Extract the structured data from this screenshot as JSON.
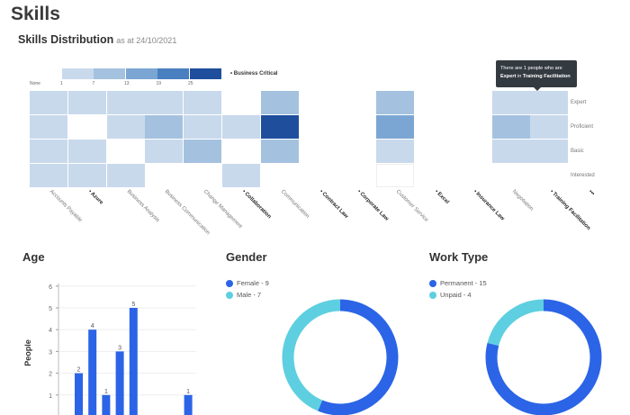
{
  "page": {
    "title": "Skills"
  },
  "skills_distribution": {
    "title": "Skills Distribution",
    "as_at": "as at 24/10/2021"
  },
  "colors": {
    "bar": "#2b64e6",
    "female": "#2b64e6",
    "male": "#5dcfe0",
    "scale": [
      "#ffffff",
      "#c9d9ec",
      "#a4c2df",
      "#7ba6d3",
      "#4a7fc0",
      "#1f4e9c"
    ]
  },
  "tooltip": {
    "line1": "There are 1 people who are",
    "level": "Expert",
    "in": " in ",
    "skill": "Training Facilitation"
  },
  "chart_data": [
    {
      "type": "heatmap",
      "legend": {
        "labels": [
          "None",
          "1",
          "7",
          "13",
          "19",
          "25"
        ],
        "critical_label": "• Business Critical"
      },
      "rows": [
        "Expert",
        "Proficient",
        "Basic",
        "Interested"
      ],
      "columns": [
        {
          "name": "Accounts Payable",
          "critical": false
        },
        {
          "name": "• Azure",
          "critical": true
        },
        {
          "name": "Business Analysis",
          "critical": false
        },
        {
          "name": "Business Communication",
          "critical": false
        },
        {
          "name": "Change Management",
          "critical": false
        },
        {
          "name": "• Collaboration",
          "critical": true
        },
        {
          "name": "Communication",
          "critical": false
        },
        {
          "name": "• Contract Law",
          "critical": true
        },
        {
          "name": "• Corporate Law",
          "critical": true
        },
        {
          "name": "Customer Service",
          "critical": false
        },
        {
          "name": "• Excel",
          "critical": true
        },
        {
          "name": "• Insurance Law",
          "critical": true
        },
        {
          "name": "Negotiation",
          "critical": false
        },
        {
          "name": "• Training Facilitation",
          "critical": true
        },
        {
          "name": "•••",
          "critical": true
        }
      ],
      "values": [
        [
          1,
          1,
          1,
          1,
          1,
          0,
          7,
          0,
          0,
          7,
          0,
          0,
          1,
          1
        ],
        [
          1,
          0,
          1,
          7,
          1,
          1,
          25,
          0,
          0,
          13,
          0,
          0,
          7,
          1
        ],
        [
          1,
          1,
          0,
          1,
          7,
          0,
          7,
          0,
          0,
          1,
          0,
          0,
          1,
          1
        ],
        [
          1,
          1,
          1,
          0,
          0,
          1,
          0,
          0,
          0,
          0,
          0,
          0,
          0,
          0
        ]
      ]
    },
    {
      "type": "bar",
      "title": "Age",
      "ylabel": "People",
      "ylim": [
        0,
        6
      ],
      "yticks": [
        1,
        2,
        3,
        4,
        5,
        6
      ],
      "grid": true,
      "values": [
        2,
        4,
        1,
        3,
        5,
        0,
        0,
        0,
        1
      ]
    },
    {
      "type": "pie",
      "title": "Gender",
      "donut": true,
      "legend": "top-left",
      "series": [
        {
          "name": "Female",
          "label": "Female - 9",
          "value": 9
        },
        {
          "name": "Male",
          "label": "Male - 7",
          "value": 7
        }
      ]
    },
    {
      "type": "pie",
      "title": "Work Type",
      "donut": true,
      "legend": "top-left",
      "series": [
        {
          "name": "Permanent",
          "label": "Permanent - 15",
          "value": 15
        },
        {
          "name": "Unpaid",
          "label": "Unpaid - 4",
          "value": 4
        }
      ]
    }
  ]
}
